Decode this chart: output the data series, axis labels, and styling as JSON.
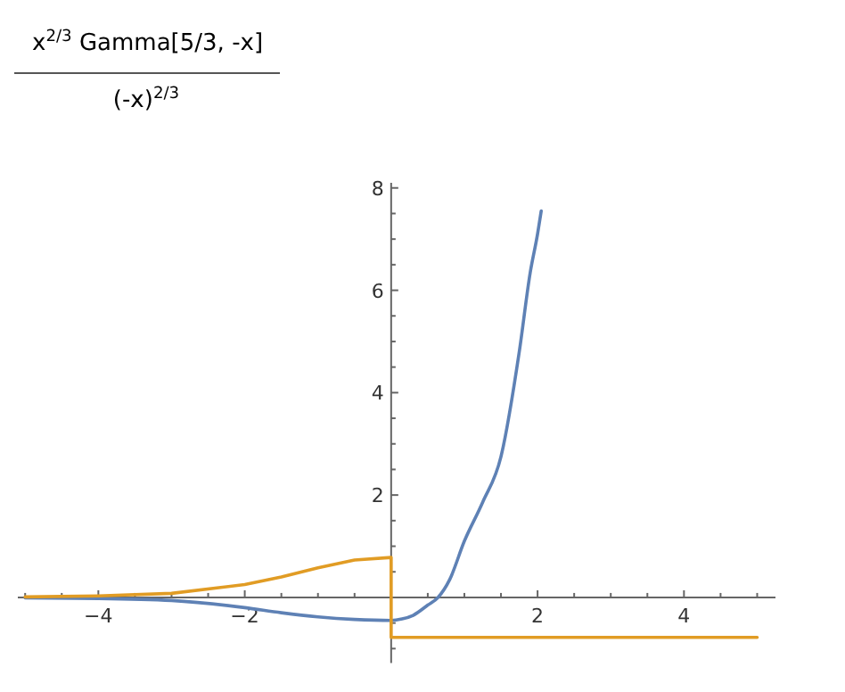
{
  "chart_data": {
    "type": "line",
    "title": "x$^{2/3}$ Gamma[5/3, -x]",
    "subtitle": "(-x)$^{2/3}$",
    "xlim": [
      -5.1,
      5.25
    ],
    "ylim": [
      -1.28,
      8.1
    ],
    "xticks": [
      {
        "value": -5,
        "label": null
      },
      {
        "value": -4.5,
        "label": null
      },
      -4,
      {
        "value": -3.5,
        "label": null
      },
      {
        "value": -3,
        "label": null
      },
      {
        "value": -2.5,
        "label": null
      },
      -2,
      {
        "value": -1.5,
        "label": null
      },
      {
        "value": -1,
        "label": null
      },
      {
        "value": -0.5,
        "label": null
      },
      {
        "value": 0.5,
        "label": null
      },
      {
        "value": 1,
        "label": null
      },
      {
        "value": 1.5,
        "label": null
      },
      2,
      {
        "value": 2.5,
        "label": null
      },
      {
        "value": 3,
        "label": null
      },
      {
        "value": 3.5,
        "label": null
      },
      4,
      {
        "value": 4.5,
        "label": null
      },
      {
        "value": 5,
        "label": null
      }
    ],
    "yticks": [
      {
        "value": -1,
        "label": null
      },
      {
        "value": -0.5,
        "label": null
      },
      {
        "value": 0.5,
        "label": null
      },
      {
        "value": 1,
        "label": null
      },
      {
        "value": 1.5,
        "label": null
      },
      2,
      {
        "value": 2.5,
        "label": null
      },
      {
        "value": 3,
        "label": null
      },
      {
        "value": 3.5,
        "label": null
      },
      4,
      {
        "value": 4.5,
        "label": null
      },
      {
        "value": 5,
        "label": null
      },
      {
        "value": 5.5,
        "label": null
      },
      6,
      {
        "value": 6.5,
        "label": null
      },
      {
        "value": 7,
        "label": null
      },
      {
        "value": 7.5,
        "label": null
      },
      8
    ],
    "grid": false,
    "marker": "none",
    "line_style": "solid",
    "series": [
      {
        "color": "#5e81b5",
        "x": [
          -5,
          -4,
          -3,
          -2,
          -1.5,
          -1,
          -0.5,
          0,
          0.15,
          0.3,
          0.5,
          0.64,
          0.8,
          1,
          1.25,
          1.5,
          1.75,
          1.9,
          2,
          2.05
        ],
        "values": [
          -0.01,
          -0.02,
          -0.06,
          -0.2,
          -0.3,
          -0.38,
          -0.43,
          -0.45,
          -0.42,
          -0.35,
          -0.15,
          0,
          0.35,
          1.1,
          1.86,
          2.75,
          4.8,
          6.35,
          7.1,
          7.55
        ]
      },
      {
        "color": "#e19c24",
        "x": [
          -5,
          -4,
          -3,
          -2,
          -1.5,
          -1,
          -0.5,
          0,
          0,
          5
        ],
        "values": [
          0.01,
          0.03,
          0.08,
          0.25,
          0.4,
          0.58,
          0.73,
          0.78,
          -0.78,
          -0.78
        ]
      }
    ]
  }
}
